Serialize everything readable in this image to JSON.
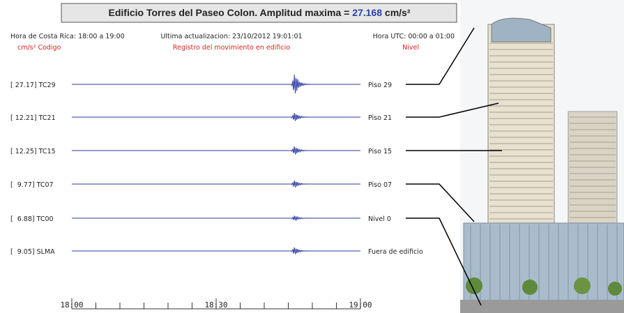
{
  "header": {
    "title": "Edificio Torres del Paseo Colon. Amplitud maxima =",
    "max_amplitude": "27.168",
    "unit": "cm/s²",
    "local_time": "Hora de Costa Rica: 18:00 a 19:00",
    "last_update": "Ultima actualizacion: 23/10/2012 19:01:01",
    "utc_time": "Hora UTC: 00:00 a 01:00",
    "col_code": "cm/s² Codigo",
    "col_record": "Registro del movimiento en edificio",
    "col_level": "Nivel"
  },
  "channels": [
    {
      "label": "[ 27.17] TC29",
      "level": "Piso 29"
    },
    {
      "label": "[ 12.21] TC21",
      "level": "Piso 21"
    },
    {
      "label": "[ 12.25] TC15",
      "level": "Piso 15"
    },
    {
      "label": "[  9.77] TC07",
      "level": "Piso 07"
    },
    {
      "label": "[  6.88] TC00",
      "level": "Nivel 0"
    },
    {
      "label": "[  9.05] SLMA",
      "level": "Fuera de edificio"
    }
  ],
  "time_axis": [
    "18:00",
    "18:30",
    "19:00"
  ]
}
